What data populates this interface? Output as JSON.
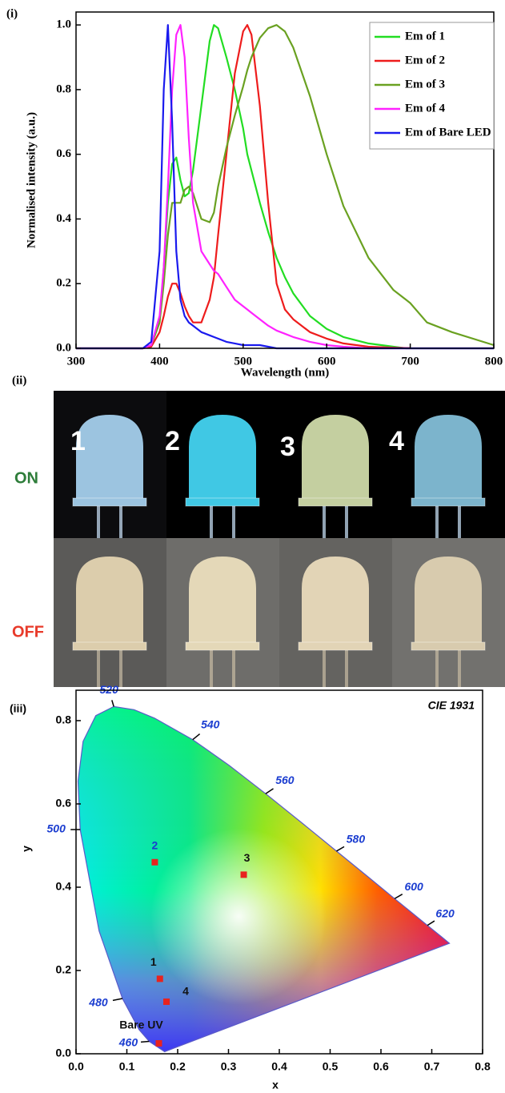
{
  "chart_data": [
    {
      "type": "line",
      "panel_label": "(i)",
      "x_label": "Wavelength (nm)",
      "y_label": "Normalised intensity (a.u.)",
      "x": [
        300,
        380,
        390,
        400,
        405,
        410,
        415,
        420,
        425,
        430,
        435,
        440,
        450,
        460,
        465,
        470,
        480,
        490,
        500,
        505,
        510,
        520,
        530,
        540,
        550,
        560,
        580,
        600,
        620,
        650,
        680,
        695,
        700,
        720,
        750,
        800
      ],
      "series": [
        {
          "name": "Em of 1",
          "color": "#22dd22",
          "values": [
            0,
            0,
            0.01,
            0.08,
            0.25,
            0.45,
            0.57,
            0.59,
            0.52,
            0.47,
            0.48,
            0.55,
            0.75,
            0.95,
            1.0,
            0.99,
            0.9,
            0.8,
            0.68,
            0.6,
            0.55,
            0.45,
            0.36,
            0.28,
            0.22,
            0.17,
            0.1,
            0.06,
            0.035,
            0.015,
            0.005,
            0,
            0,
            0,
            0,
            0
          ]
        },
        {
          "name": "Em of 2",
          "color": "#ee1c1c",
          "values": [
            0,
            0,
            0.005,
            0.05,
            0.1,
            0.16,
            0.2,
            0.2,
            0.17,
            0.13,
            0.1,
            0.08,
            0.08,
            0.15,
            0.22,
            0.35,
            0.6,
            0.85,
            0.98,
            1.0,
            0.97,
            0.75,
            0.45,
            0.2,
            0.12,
            0.09,
            0.05,
            0.03,
            0.015,
            0.005,
            0.002,
            0.001,
            0.001,
            null,
            null,
            null
          ]
        },
        {
          "name": "Em of 3",
          "color": "#6aa121",
          "values": [
            0,
            0,
            0.01,
            0.08,
            0.2,
            0.35,
            0.45,
            0.45,
            0.45,
            0.49,
            0.5,
            0.48,
            0.4,
            0.39,
            0.42,
            0.5,
            0.62,
            0.72,
            0.81,
            0.86,
            0.9,
            0.96,
            0.99,
            1.0,
            0.98,
            0.93,
            0.78,
            0.6,
            0.44,
            0.28,
            0.18,
            0.15,
            0.14,
            0.08,
            0.05,
            0.01
          ]
        },
        {
          "name": "Em of 4",
          "color": "#ff22ff",
          "values": [
            0,
            0,
            0.01,
            0.1,
            0.25,
            0.5,
            0.8,
            0.97,
            1.0,
            0.9,
            0.65,
            0.45,
            0.3,
            0.26,
            0.24,
            0.23,
            0.19,
            0.15,
            0.13,
            0.12,
            0.11,
            0.09,
            0.07,
            0.055,
            0.045,
            0.035,
            0.02,
            0.01,
            0.005,
            0,
            0,
            0,
            0,
            0,
            0,
            0
          ]
        },
        {
          "name": "Em of Bare LED",
          "color": "#1a1aee",
          "values": [
            0,
            0,
            0.02,
            0.3,
            0.8,
            1.0,
            0.7,
            0.3,
            0.15,
            0.1,
            0.08,
            0.07,
            0.05,
            0.04,
            0.035,
            0.03,
            0.02,
            0.015,
            0.01,
            0.01,
            0.01,
            0.01,
            0.005,
            0,
            0,
            0,
            0,
            0,
            0,
            0,
            0,
            0,
            0,
            0,
            0,
            0
          ]
        }
      ],
      "xlim": [
        300,
        800
      ],
      "xticks": [
        300,
        400,
        500,
        600,
        700,
        800
      ],
      "ylim": [
        0,
        1.04
      ],
      "yticks": [
        {
          "value": 0,
          "label": "0.0"
        },
        0.2,
        0.4,
        0.6,
        0.8,
        {
          "value": 1,
          "label": "1.0"
        }
      ],
      "legend": "upper right"
    },
    {
      "type": "scatter",
      "panel_label": "(iii)",
      "title": "CIE 1931",
      "x_label": "x",
      "y_label": "y",
      "xlim": [
        0,
        0.8
      ],
      "xticks": [
        {
          "value": 0,
          "label": "0.0"
        },
        0.1,
        0.2,
        0.3,
        0.4,
        0.5,
        0.6,
        0.7,
        0.8
      ],
      "ylim": [
        0,
        0.873
      ],
      "yticks": [
        {
          "value": 0,
          "label": "0.0"
        },
        0.2,
        0.4,
        0.6,
        0.8
      ],
      "points": {
        "labels": [
          "1",
          "2",
          "3",
          "4",
          "Bare UV"
        ],
        "x": [
          0.165,
          0.155,
          0.33,
          0.178,
          0.163
        ],
        "y": [
          0.18,
          0.46,
          0.43,
          0.125,
          0.025
        ],
        "color": "#e8231f",
        "label_colors": [
          "#111111",
          "#1a3cd0",
          "#111111",
          "#111111",
          "#111111"
        ]
      },
      "locus": {
        "wavelengths": [
          380,
          460,
          470,
          480,
          490,
          500,
          505,
          510,
          515,
          520,
          525,
          530,
          540,
          550,
          560,
          570,
          580,
          590,
          600,
          620,
          640,
          700
        ],
        "x": [
          0.1741,
          0.144,
          0.1241,
          0.0913,
          0.0454,
          0.0082,
          0.0039,
          0.0139,
          0.0389,
          0.0743,
          0.1142,
          0.1547,
          0.2296,
          0.3016,
          0.3731,
          0.4441,
          0.5125,
          0.5752,
          0.627,
          0.6915,
          0.719,
          0.7347
        ],
        "y": [
          0.005,
          0.0297,
          0.0578,
          0.1327,
          0.295,
          0.5384,
          0.6548,
          0.7502,
          0.812,
          0.8338,
          0.8262,
          0.8059,
          0.7543,
          0.6923,
          0.6245,
          0.5547,
          0.4866,
          0.4242,
          0.3725,
          0.3083,
          0.2809,
          0.2653
        ],
        "color": "#5a5ac8"
      },
      "wavelength_labels": [
        460,
        480,
        500,
        520,
        540,
        560,
        580,
        600,
        620
      ]
    }
  ],
  "photo_panel": {
    "panel_label": "(ii)",
    "samples": [
      "1",
      "2",
      "3",
      "4"
    ],
    "rows": [
      "ON",
      "OFF"
    ]
  }
}
